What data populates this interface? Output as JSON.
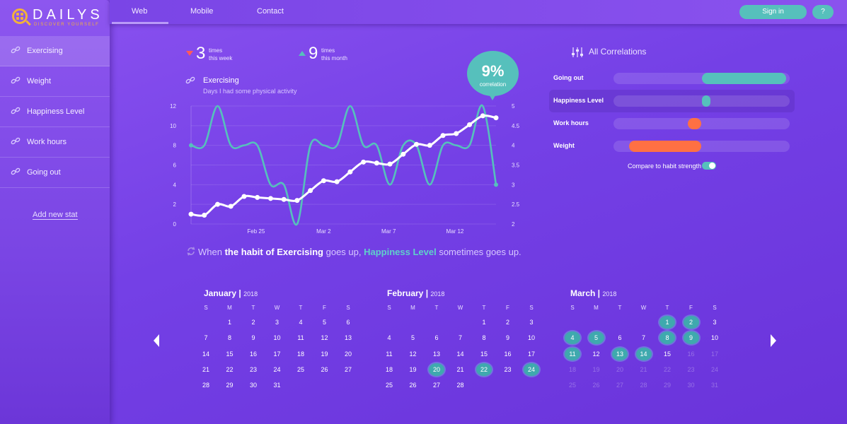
{
  "logo": {
    "name": "DAILYS",
    "tagline": "DISCOVER YOURSELF"
  },
  "nav": {
    "tabs": [
      "Web",
      "Mobile",
      "Contact"
    ],
    "signin": "Sign in",
    "help": "?"
  },
  "sidebar": {
    "items": [
      {
        "label": "Exercising",
        "active": true
      },
      {
        "label": "Weight"
      },
      {
        "label": "Happiness Level"
      },
      {
        "label": "Work hours"
      },
      {
        "label": "Going out"
      }
    ],
    "add": "Add new stat"
  },
  "stats": {
    "week": {
      "value": "3",
      "line1": "times",
      "line2": "this week",
      "trend": "down"
    },
    "month": {
      "value": "9",
      "line1": "times",
      "line2": "this month",
      "trend": "up"
    }
  },
  "habit": {
    "title": "Exercising",
    "subtitle": "Days I had some physical activity"
  },
  "correlation": {
    "value": "9%",
    "label": "correlation"
  },
  "colors": {
    "teal": "#56c0bc",
    "orange": "#ff7043",
    "white": "#ffffff"
  },
  "chart_data": {
    "type": "line",
    "x_ticks": [
      "Feb 25",
      "Mar 2",
      "Mar 7",
      "Mar 12"
    ],
    "y_left_ticks": [
      "0",
      "2",
      "4",
      "6",
      "8",
      "10",
      "12"
    ],
    "y_right_ticks": [
      "2",
      "2.5",
      "3",
      "3.5",
      "4",
      "4.5",
      "5"
    ],
    "ylim_left": [
      0,
      12
    ],
    "ylim_right": [
      2,
      5
    ],
    "grid": true,
    "series": [
      {
        "axis": "left",
        "color": "#ffffff",
        "values": [
          1.0,
          0.9,
          2.0,
          1.8,
          2.8,
          2.7,
          2.6,
          2.5,
          2.4,
          3.4,
          4.4,
          4.3,
          5.3,
          6.3,
          6.2,
          6.1,
          7.1,
          8.1,
          8.0,
          9.0,
          9.2,
          10.1,
          11.0,
          10.8
        ]
      },
      {
        "axis": "right",
        "color": "#56c0bc",
        "values": [
          4.0,
          4.0,
          5.0,
          4.0,
          4.0,
          4.0,
          3.0,
          3.0,
          2.0,
          4.0,
          4.0,
          4.0,
          5.0,
          4.0,
          4.0,
          3.0,
          4.0,
          4.0,
          3.0,
          4.0,
          4.0,
          4.0,
          5.0,
          3.0
        ]
      }
    ]
  },
  "insight": {
    "p1": "When ",
    "p2": "the habit of Exercising",
    "p3": " goes up, ",
    "p4": "Happiness Level",
    "p5": " sometimes goes up."
  },
  "correlations": {
    "title": "All Correlations",
    "rows": [
      {
        "name": "Going out",
        "start": 0.5,
        "end": 0.98,
        "color": "#56c0bc"
      },
      {
        "name": "Happiness Level",
        "start": 0.5,
        "end": 0.55,
        "color": "#56c0bc",
        "active": true
      },
      {
        "name": "Work hours",
        "start": 0.42,
        "end": 0.5,
        "color": "#ff7043"
      },
      {
        "name": "Weight",
        "start": 0.09,
        "end": 0.5,
        "color": "#ff7043"
      }
    ],
    "compare": "Compare to habit strength"
  },
  "calendar": {
    "dow": [
      "S",
      "M",
      "T",
      "W",
      "T",
      "F",
      "S"
    ],
    "months": [
      {
        "name": "January",
        "year": "2018",
        "start": 1,
        "days": 31,
        "marked": [],
        "dim_from": 99
      },
      {
        "name": "February",
        "year": "2018",
        "start": 4,
        "days": 28,
        "marked": [
          20,
          22,
          24
        ],
        "dim_from": 99
      },
      {
        "name": "March",
        "year": "2018",
        "start": 4,
        "days": 31,
        "marked": [
          1,
          2,
          4,
          5,
          8,
          9,
          11,
          13,
          14
        ],
        "dim_from": 16
      }
    ]
  }
}
